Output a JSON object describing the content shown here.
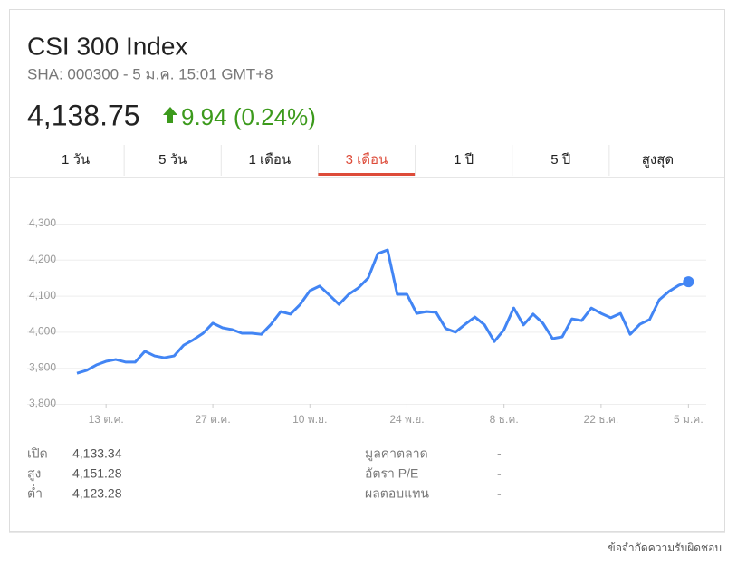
{
  "header": {
    "title": "CSI 300 Index",
    "subtitle": "SHA: 000300 - 5 ม.ค. 15:01 GMT+8",
    "price": "4,138.75",
    "change": "9.94 (0.24%)"
  },
  "tabs": [
    "1 วัน",
    "5 วัน",
    "1 เดือน",
    "3 เดือน",
    "1 ปี",
    "5 ปี",
    "สูงสุด"
  ],
  "active_tab": 3,
  "chart_data": {
    "type": "line",
    "categories": [
      null,
      null,
      null,
      "13 ต.ค.",
      null,
      null,
      null,
      null,
      null,
      null,
      null,
      null,
      null,
      null,
      "27 ต.ค.",
      null,
      null,
      null,
      null,
      null,
      null,
      null,
      null,
      null,
      "10 พ.ย.",
      null,
      null,
      null,
      null,
      null,
      null,
      null,
      null,
      null,
      "24 พ.ย.",
      null,
      null,
      null,
      null,
      null,
      null,
      null,
      null,
      null,
      "8 ธ.ค.",
      null,
      null,
      null,
      null,
      null,
      null,
      null,
      null,
      null,
      "22 ธ.ค.",
      null,
      null,
      null,
      null,
      null,
      null,
      null,
      null,
      "5 ม.ค."
    ],
    "series": [
      {
        "color": "#4285f4",
        "values": [
          3885,
          3893,
          3908,
          3918,
          3923,
          3916,
          3916,
          3946,
          3933,
          3928,
          3933,
          3963,
          3978,
          3996,
          4024,
          4011,
          4006,
          3996,
          3996,
          3993,
          4021,
          4056,
          4049,
          4076,
          4114,
          4127,
          4102,
          4076,
          4104,
          4122,
          4149,
          4217,
          4227,
          4104,
          4104,
          4051,
          4056,
          4054,
          4009,
          3999,
          4021,
          4041,
          4019,
          3973,
          4006,
          4066,
          4019,
          4049,
          4024,
          3981,
          3986,
          4036,
          4031,
          4066,
          4051,
          4039,
          4051,
          3993,
          4021,
          4034,
          4089,
          4112,
          4129,
          4138.75
        ]
      }
    ],
    "ylim": [
      3800,
      4300
    ],
    "yticks": [
      {
        "value": 3800,
        "label": "3,800"
      },
      {
        "value": 3900,
        "label": "3,900"
      },
      {
        "value": 4000,
        "label": "4,000"
      },
      {
        "value": 4100,
        "label": "4,100"
      },
      {
        "value": 4200,
        "label": "4,200"
      },
      {
        "value": 4300,
        "label": "4,300"
      }
    ],
    "grid": true
  },
  "stats": {
    "left": [
      [
        "เปิด",
        "4,133.34"
      ],
      [
        "สูง",
        "4,151.28"
      ],
      [
        "ต่ำ",
        "4,123.28"
      ]
    ],
    "right": [
      [
        "มูลค่าตลาด",
        "-"
      ],
      [
        "อัตรา P/E",
        "-"
      ],
      [
        "ผลตอบแทน",
        "-"
      ]
    ]
  },
  "footer": "ข้อจำกัดความรับผิดชอบ"
}
